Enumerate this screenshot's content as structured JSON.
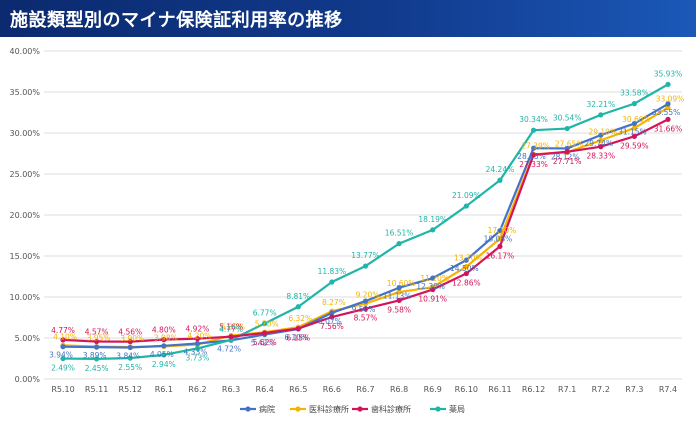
{
  "header": {
    "title": "施設類型別のマイナ保険証利用率の推移"
  },
  "chart_data": {
    "type": "line",
    "title": "",
    "xlabel": "",
    "ylabel": "",
    "ylim": [
      0,
      40
    ],
    "yticks": [
      0,
      5,
      10,
      15,
      20,
      25,
      30,
      35,
      40
    ],
    "ytick_labels": [
      "0.00%",
      "5.00%",
      "10.00%",
      "15.00%",
      "20.00%",
      "25.00%",
      "30.00%",
      "35.00%",
      "40.00%"
    ],
    "grid": true,
    "legend_position": "bottom",
    "categories": [
      "R5.10",
      "R5.11",
      "R5.12",
      "R6.1",
      "R6.2",
      "R6.3",
      "R6.4",
      "R6.5",
      "R6.6",
      "R6.7",
      "R6.8",
      "R6.9",
      "R6.10",
      "R6.11",
      "R6.12",
      "R7.1",
      "R7.2",
      "R7.3",
      "R7.4"
    ],
    "series": [
      {
        "name": "病院",
        "color": "#4472c4",
        "values": [
          3.94,
          3.89,
          3.84,
          4.05,
          4.33,
          4.72,
          5.42,
          6.1,
          8.07,
          9.5,
          11.13,
          12.3,
          14.5,
          18.08,
          28.15,
          28.12,
          29.74,
          31.15,
          33.55
        ],
        "labels": [
          "3.94%",
          "3.89%",
          "3.84%",
          "4.05%",
          "4.33%",
          "4.72%",
          "5.42%",
          "6.10%",
          "8.07%",
          "9.50%",
          "11.13%",
          "12.30%",
          "14.50%",
          "18.08%",
          "28.15%",
          "28.12%",
          "29.74%",
          "31.15%",
          "33.55%"
        ]
      },
      {
        "name": "医科診療所",
        "color": "#f4b400",
        "values": [
          4.1,
          3.95,
          3.9,
          3.98,
          4.2,
          5.3,
          5.7,
          6.32,
          8.27,
          9.2,
          10.6,
          11.2,
          13.7,
          17.1,
          27.39,
          27.65,
          29.1,
          30.6,
          33.09
        ],
        "labels": [
          "4.10%",
          "3.95%",
          "3.90%",
          "3.98%",
          "4.20%",
          "5.30%",
          "5.70%",
          "6.32%",
          "8.27%",
          "9.20%",
          "10.60%",
          "11.20%",
          "13.70%",
          "17.10%",
          "27.39%",
          "27.65%",
          "29.10%",
          "30.60%",
          "33.09%"
        ]
      },
      {
        "name": "歯科診療所",
        "color": "#d4145a",
        "values": [
          4.77,
          4.57,
          4.56,
          4.8,
          4.92,
          5.16,
          5.62,
          6.15,
          7.56,
          8.57,
          9.58,
          10.91,
          12.86,
          16.17,
          27.33,
          27.71,
          28.33,
          29.59,
          31.66
        ],
        "labels": [
          "4.77%",
          "4.57%",
          "4.56%",
          "4.80%",
          "4.92%",
          "5.16%",
          "5.62%",
          "6.15%",
          "7.56%",
          "8.57%",
          "9.58%",
          "10.91%",
          "12.86%",
          "16.17%",
          "27.33%",
          "27.71%",
          "28.33%",
          "29.59%",
          "31.66%"
        ]
      },
      {
        "name": "薬局",
        "color": "#1fb5a8",
        "values": [
          2.49,
          2.45,
          2.55,
          2.94,
          3.73,
          4.77,
          6.77,
          8.81,
          11.83,
          13.77,
          16.51,
          18.19,
          21.09,
          24.24,
          30.34,
          30.54,
          32.21,
          33.58,
          35.93
        ],
        "labels": [
          "2.49%",
          "2.45%",
          "2.55%",
          "2.94%",
          "3.73%",
          "4.77%",
          "6.77%",
          "8.81%",
          "11.83%",
          "13.77%",
          "16.51%",
          "18.19%",
          "21.09%",
          "24.24%",
          "30.34%",
          "30.54%",
          "32.21%",
          "33.58%",
          "35.93%"
        ]
      }
    ]
  }
}
